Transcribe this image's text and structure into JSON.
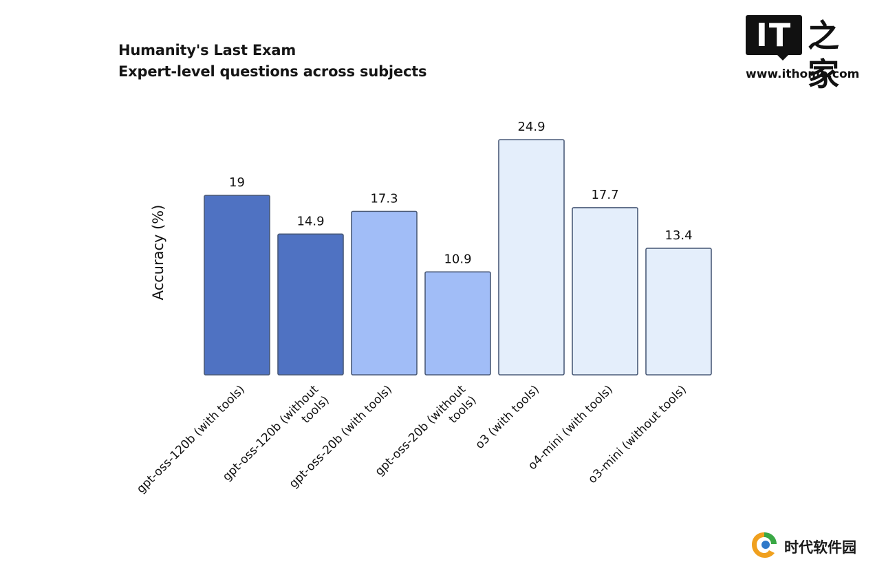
{
  "chart_data": {
    "type": "bar",
    "title": "Humanity's Last Exam",
    "subtitle": "Expert-level questions across subjects",
    "xlabel": "",
    "ylabel": "Accuracy (%)",
    "ylim": [
      0,
      24.9
    ],
    "grid": false,
    "categories": [
      "gpt-oss-120b (with tools)",
      "gpt-oss-120b (without tools)",
      "gpt-oss-20b (with tools)",
      "gpt-oss-20b (without tools)",
      "o3 (with tools)",
      "o4-mini (with tools)",
      "o3-mini (without tools)"
    ],
    "category_lines": [
      [
        "gpt-oss-120b (with tools)"
      ],
      [
        "gpt-oss-120b (without",
        "tools)"
      ],
      [
        "gpt-oss-20b (with tools)"
      ],
      [
        "gpt-oss-20b (without",
        "tools)"
      ],
      [
        "o3 (with tools)"
      ],
      [
        "o4-mini (with tools)"
      ],
      [
        "o3-mini (without tools)"
      ]
    ],
    "values": [
      19,
      14.9,
      17.3,
      10.9,
      24.9,
      17.7,
      13.4
    ],
    "value_labels": [
      "19",
      "14.9",
      "17.3",
      "10.9",
      "24.9",
      "17.7",
      "13.4"
    ],
    "bar_colors": [
      "#4F72C2",
      "#4F72C2",
      "#A1BDF7",
      "#A1BDF7",
      "#E4EEFB",
      "#E4EEFB",
      "#E4EEFB"
    ],
    "bar_outline_color": "#4A5A78"
  },
  "watermarks": {
    "ithome": {
      "logo_text": "IT",
      "brand_cn": "之家",
      "url": "www.ithome.com"
    },
    "sdsoft": {
      "text": "时代软件园",
      "icon": "sdsoft-logo-icon"
    }
  }
}
